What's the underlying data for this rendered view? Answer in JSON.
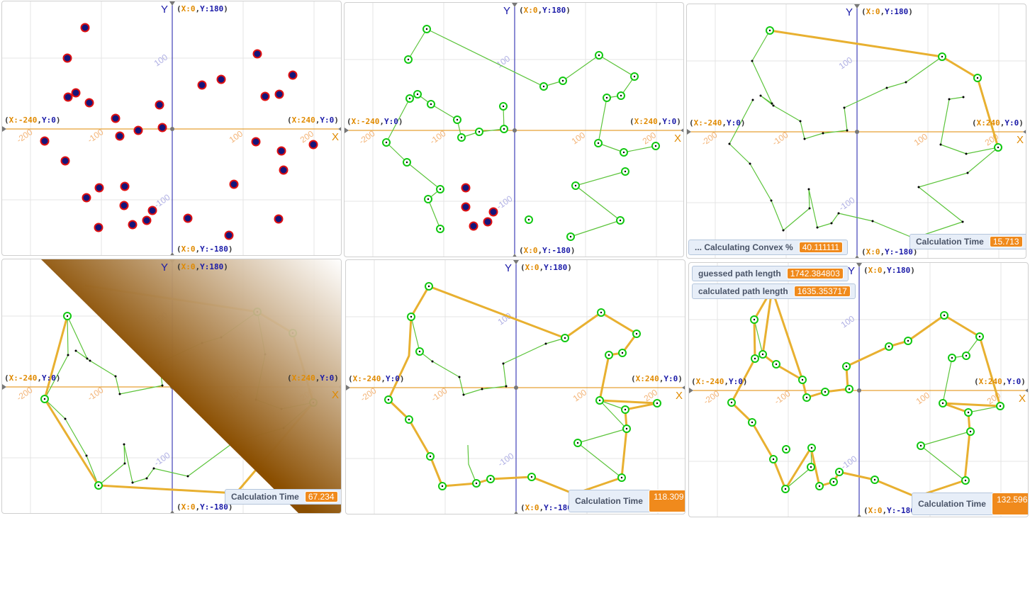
{
  "axes": {
    "x_name": "X",
    "y_name": "Y",
    "top": {
      "x": "X:0",
      "y": "Y:180"
    },
    "bottom": {
      "x": "X:0",
      "y": "Y:-180"
    },
    "left": {
      "x": "X:-240",
      "y": "Y:0"
    },
    "right": {
      "x": "X:240",
      "y": "Y:0"
    },
    "tick_labels_x": [
      "-200",
      "-100",
      "100",
      "200"
    ],
    "tick_labels_y": [
      "100",
      "-100"
    ]
  },
  "colors": {
    "axis_x": "#e08a00",
    "axis_y": "#1a1aa8",
    "path_line": "#5cc43b",
    "hull_line": "#e8b030",
    "point_unvisited": "#e01010",
    "point_visited": "#11c811",
    "gradient_dark": "#8a4e00"
  },
  "panels": [
    {
      "id": "p1",
      "readouts": []
    },
    {
      "id": "p2",
      "readouts": []
    },
    {
      "id": "p3",
      "readouts": [
        {
          "label": "... Calculating Convex %",
          "value": "40.111111"
        },
        {
          "label": "Calculation Time",
          "value": "15.713"
        }
      ]
    },
    {
      "id": "p4",
      "readouts": [
        {
          "label": "Calculation Time",
          "value": "67.234"
        }
      ]
    },
    {
      "id": "p5",
      "readouts": [
        {
          "label": "Calculation Time",
          "value": "118.309"
        }
      ]
    },
    {
      "id": "p6",
      "readouts": [
        {
          "label": "guessed path length",
          "value": "1742.384803"
        },
        {
          "label": "calculated path length",
          "value": "1635.353717"
        },
        {
          "label": "Calculation Time",
          "value": "132.596"
        }
      ]
    }
  ]
}
